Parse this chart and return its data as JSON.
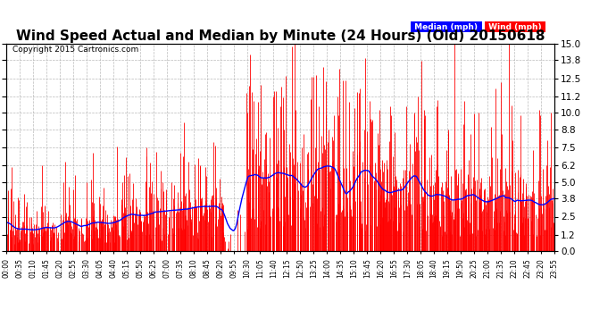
{
  "title": "Wind Speed Actual and Median by Minute (24 Hours) (Old) 20150618",
  "copyright": "Copyright 2015 Cartronics.com",
  "yticks": [
    0.0,
    1.2,
    2.5,
    3.8,
    5.0,
    6.2,
    7.5,
    8.8,
    10.0,
    11.2,
    12.5,
    13.8,
    15.0
  ],
  "ymin": 0.0,
  "ymax": 15.0,
  "wind_color": "#FF0000",
  "median_color": "#0000FF",
  "bg_color": "#FFFFFF",
  "grid_color": "#AAAAAA",
  "title_fontsize": 11,
  "legend_wind_bg": "#FF0000",
  "legend_median_bg": "#0000FF",
  "xtick_labels": [
    "00:00",
    "00:35",
    "01:10",
    "01:45",
    "02:20",
    "02:55",
    "03:30",
    "04:05",
    "04:40",
    "05:15",
    "05:50",
    "06:25",
    "07:00",
    "07:35",
    "08:10",
    "08:45",
    "09:20",
    "09:55",
    "10:30",
    "11:05",
    "11:40",
    "12:15",
    "12:50",
    "13:25",
    "14:00",
    "14:35",
    "15:10",
    "15:45",
    "16:20",
    "16:55",
    "17:30",
    "18:05",
    "18:40",
    "19:15",
    "19:50",
    "20:25",
    "21:00",
    "21:35",
    "22:10",
    "22:45",
    "23:20",
    "23:55"
  ]
}
